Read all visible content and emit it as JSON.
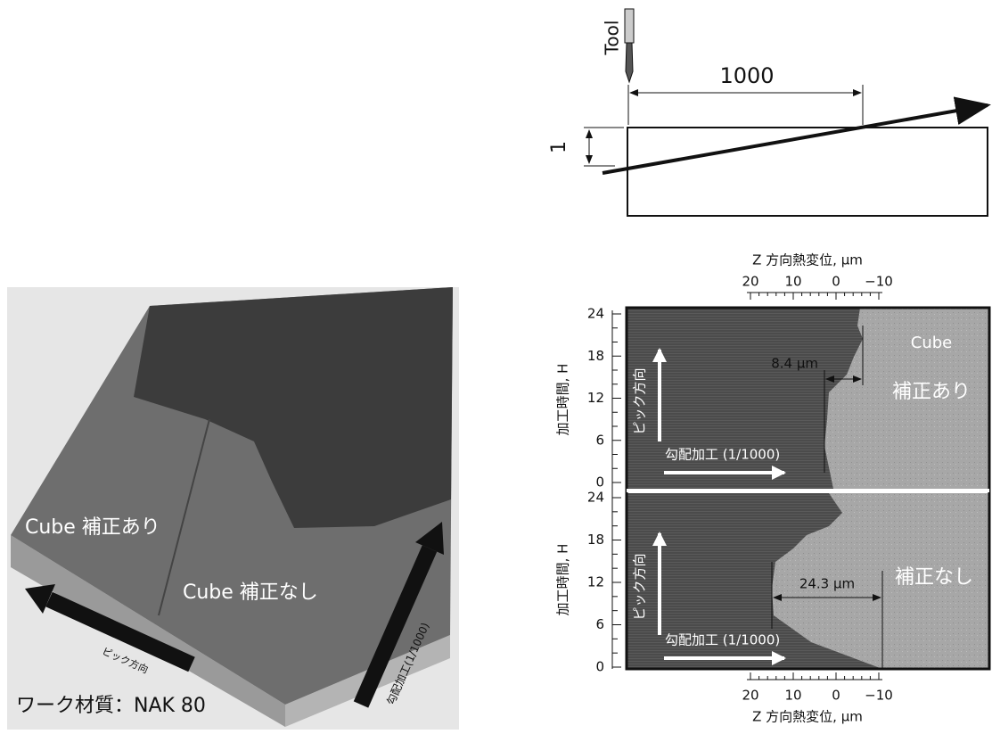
{
  "photo": {
    "label_with": "Cube 補正あり",
    "label_without": "Cube 補正なし",
    "pick": "ピック方向",
    "slope": "勾配加工(1/1000)",
    "material": "ワーク材質：NAK 80"
  },
  "schematic": {
    "tool": "Tool",
    "length": "1000",
    "height": "1"
  },
  "map": {
    "x_axis_title": "Z 方向熱変位, μm",
    "x_ticks": [
      "20",
      "10",
      "0",
      "−10"
    ],
    "y_axis_title": "加工時間, H",
    "y_ticks": [
      "24",
      "18",
      "12",
      "6",
      "0"
    ],
    "panels": [
      {
        "label_top": "Cube",
        "label": "補正あり",
        "pick": "ピック方向",
        "slope": "勾配加工 (1/1000)",
        "gap": "8.4 μm"
      },
      {
        "label": "補正なし",
        "pick": "ピック方向",
        "slope": "勾配加工 (1/1000)",
        "gap": "24.3 μm"
      }
    ]
  }
}
